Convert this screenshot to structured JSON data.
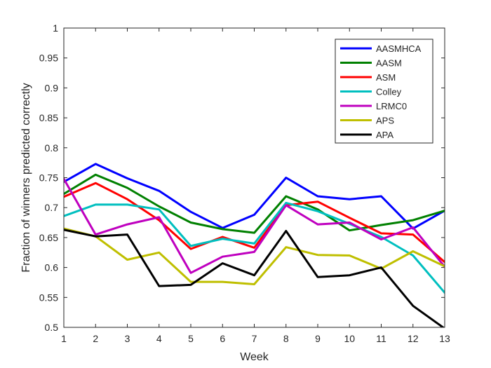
{
  "chart_data": {
    "type": "line",
    "xlabel": "Week",
    "ylabel": "Fraction of winners predicted correctly",
    "xlim": [
      1,
      13
    ],
    "ylim": [
      0.5,
      1
    ],
    "x": [
      1,
      2,
      3,
      4,
      5,
      6,
      7,
      8,
      9,
      10,
      11,
      12,
      13
    ],
    "x_ticks": [
      "1",
      "2",
      "3",
      "4",
      "5",
      "6",
      "7",
      "8",
      "9",
      "10",
      "11",
      "12",
      "13"
    ],
    "y_ticks": [
      "0.5",
      "0.55",
      "0.6",
      "0.65",
      "0.7",
      "0.75",
      "0.8",
      "0.85",
      "0.9",
      "0.95",
      "1"
    ],
    "grid": false,
    "legend_position": "top-right",
    "series": [
      {
        "name": "AASMHCA",
        "color": "#0000ff",
        "values": [
          0.743,
          0.773,
          0.749,
          0.728,
          0.693,
          0.666,
          0.688,
          0.75,
          0.719,
          0.714,
          0.719,
          0.665,
          0.695
        ]
      },
      {
        "name": "AASM",
        "color": "#008000",
        "values": [
          0.723,
          0.755,
          0.733,
          0.702,
          0.675,
          0.664,
          0.658,
          0.719,
          0.697,
          0.662,
          0.671,
          0.679,
          0.695
        ]
      },
      {
        "name": "ASM",
        "color": "#ff0000",
        "values": [
          0.718,
          0.741,
          0.714,
          0.679,
          0.631,
          0.651,
          0.633,
          0.704,
          0.71,
          0.683,
          0.657,
          0.655,
          0.609
        ]
      },
      {
        "name": "Colley",
        "color": "#00bfbf",
        "values": [
          0.686,
          0.705,
          0.705,
          0.697,
          0.636,
          0.648,
          0.64,
          0.708,
          0.694,
          0.673,
          0.651,
          0.62,
          0.558
        ]
      },
      {
        "name": "LRMC0",
        "color": "#bf00bf",
        "values": [
          0.748,
          0.655,
          0.672,
          0.684,
          0.591,
          0.618,
          0.626,
          0.704,
          0.672,
          0.675,
          0.647,
          0.667,
          0.601
        ]
      },
      {
        "name": "APS",
        "color": "#bfbf00",
        "values": [
          0.665,
          0.652,
          0.613,
          0.625,
          0.576,
          0.576,
          0.572,
          0.634,
          0.621,
          0.62,
          0.598,
          0.627,
          0.602
        ]
      },
      {
        "name": "APA",
        "color": "#000000",
        "values": [
          0.663,
          0.652,
          0.655,
          0.569,
          0.571,
          0.607,
          0.587,
          0.661,
          0.584,
          0.587,
          0.6,
          0.536,
          0.498
        ]
      }
    ]
  }
}
